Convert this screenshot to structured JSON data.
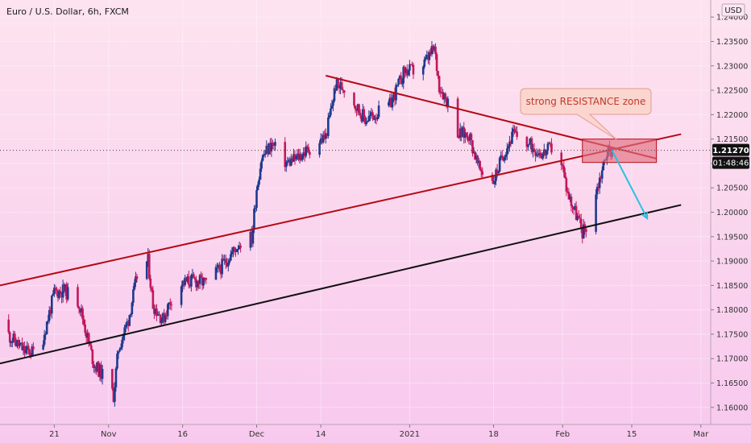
{
  "symbol_title": "Euro / U.S. Dollar, 6h, FXCM",
  "currency": "USD",
  "price_badge": "1.21270",
  "countdown_badge": "01:48:46",
  "annotation": "strong RESISTANCE zone",
  "colors": {
    "bg_top": "#fde3ef",
    "bg_bottom": "#f8c9ee",
    "up": "#1f3a8c",
    "down": "#c2185b",
    "channel_upper": "#b50a16",
    "downtrend": "#b50a16",
    "support": "#111111",
    "zone_fill": "#e2707f",
    "zone_stroke": "#b50a16",
    "arrow": "#2bc0e0",
    "callout_fill": "#fbd6cf",
    "callout_stroke": "#e39a8f",
    "callout_text": "#c0392b",
    "badge_bg": "#111111",
    "badge_text": "#ffffff"
  },
  "chart_data": {
    "type": "candlestick",
    "title": "Euro / U.S. Dollar, 6h, FXCM",
    "ylabel": "USD",
    "ylim": [
      1.1565,
      1.2435
    ],
    "y_ticks": [
      "1.16000",
      "1.16500",
      "1.17000",
      "1.17500",
      "1.18000",
      "1.18500",
      "1.19000",
      "1.19500",
      "1.20000",
      "1.20500",
      "1.21000",
      "1.21500",
      "1.22000",
      "1.22500",
      "1.23000",
      "1.23500",
      "1.24000"
    ],
    "x_ticks": [
      {
        "label": "21",
        "date": "2020-10-21"
      },
      {
        "label": "Nov",
        "date": "2020-11-01"
      },
      {
        "label": "16",
        "date": "2020-11-16"
      },
      {
        "label": "Dec",
        "date": "2020-12-01"
      },
      {
        "label": "14",
        "date": "2020-12-14"
      },
      {
        "label": "2021",
        "date": "2021-01-01"
      },
      {
        "label": "18",
        "date": "2021-01-18"
      },
      {
        "label": "Feb",
        "date": "2021-02-01"
      },
      {
        "label": "15",
        "date": "2021-02-15"
      },
      {
        "label": "Mar",
        "date": "2021-03-01"
      }
    ],
    "xlim": [
      "2020-10-10",
      "2021-03-03"
    ],
    "last_price": 1.2127,
    "price_path": [
      [
        "2020-10-10",
        1.178
      ],
      [
        "2020-10-12",
        1.1745
      ],
      [
        "2020-10-15",
        1.1715
      ],
      [
        "2020-10-18",
        1.1712
      ],
      [
        "2020-10-21",
        1.1835
      ],
      [
        "2020-10-23",
        1.184
      ],
      [
        "2020-10-26",
        1.1815
      ],
      [
        "2020-10-29",
        1.169
      ],
      [
        "2020-11-01",
        1.165
      ],
      [
        "2020-11-02",
        1.1625
      ],
      [
        "2020-11-03",
        1.172
      ],
      [
        "2020-11-05",
        1.178
      ],
      [
        "2020-11-07",
        1.188
      ],
      [
        "2020-11-09",
        1.19
      ],
      [
        "2020-11-10",
        1.181
      ],
      [
        "2020-11-12",
        1.178
      ],
      [
        "2020-11-14",
        1.183
      ],
      [
        "2020-11-16",
        1.1855
      ],
      [
        "2020-11-18",
        1.186
      ],
      [
        "2020-11-21",
        1.1855
      ],
      [
        "2020-11-24",
        1.189
      ],
      [
        "2020-11-27",
        1.193
      ],
      [
        "2020-11-29",
        1.1955
      ],
      [
        "2020-11-30",
        1.1945
      ],
      [
        "2020-12-01",
        1.205
      ],
      [
        "2020-12-02",
        1.211
      ],
      [
        "2020-12-04",
        1.214
      ],
      [
        "2020-12-07",
        1.21
      ],
      [
        "2020-12-09",
        1.211
      ],
      [
        "2020-12-11",
        1.2125
      ],
      [
        "2020-12-13",
        1.214
      ],
      [
        "2020-12-15",
        1.2155
      ],
      [
        "2020-12-17",
        1.226
      ],
      [
        "2020-12-19",
        1.2255
      ],
      [
        "2020-12-21",
        1.222
      ],
      [
        "2020-12-23",
        1.219
      ],
      [
        "2020-12-25",
        1.22
      ],
      [
        "2020-12-28",
        1.222
      ],
      [
        "2020-12-31",
        1.229
      ],
      [
        "2021-01-03",
        1.229
      ],
      [
        "2021-01-05",
        1.232
      ],
      [
        "2021-01-06",
        1.2335
      ],
      [
        "2021-01-07",
        1.226
      ],
      [
        "2021-01-09",
        1.222
      ],
      [
        "2021-01-11",
        1.216
      ],
      [
        "2021-01-13",
        1.216
      ],
      [
        "2021-01-15",
        1.209
      ],
      [
        "2021-01-17",
        1.2075
      ],
      [
        "2021-01-18",
        1.2065
      ],
      [
        "2021-01-20",
        1.212
      ],
      [
        "2021-01-22",
        1.216
      ],
      [
        "2021-01-25",
        1.214
      ],
      [
        "2021-01-28",
        1.212
      ],
      [
        "2021-01-31",
        1.214
      ],
      [
        "2021-02-02",
        1.204
      ],
      [
        "2021-02-04",
        1.199
      ],
      [
        "2021-02-05",
        1.196
      ],
      [
        "2021-02-06",
        1.1975
      ],
      [
        "2021-02-08",
        1.205
      ],
      [
        "2021-02-10",
        1.2125
      ],
      [
        "2021-02-11",
        1.2127
      ]
    ],
    "drawings": {
      "upper_channel": [
        [
          "2020-10-10",
          1.185
        ],
        [
          "2021-02-25",
          1.216
        ]
      ],
      "support_line": [
        [
          "2020-10-10",
          1.169
        ],
        [
          "2021-02-25",
          1.2015
        ]
      ],
      "downtrend_line": [
        [
          "2020-12-15",
          1.228
        ],
        [
          "2021-02-20",
          1.211
        ]
      ],
      "resistance_zone": {
        "x": [
          "2021-02-05",
          "2021-02-20"
        ],
        "y": [
          1.2102,
          1.215
        ]
      },
      "projection_arrow": [
        [
          "2021-02-11",
          1.2127
        ],
        [
          "2021-02-18",
          1.199
        ]
      ]
    }
  }
}
